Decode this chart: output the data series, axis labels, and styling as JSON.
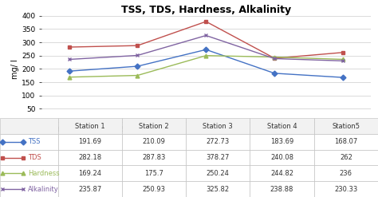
{
  "title": "TSS, TDS, Hardness, Alkalinity",
  "ylabel": "mg/ l",
  "stations": [
    "Station 1",
    "Station 2",
    "Station 3",
    "Station 4",
    "Station5"
  ],
  "series": [
    {
      "label": "TSS",
      "values": [
        191.69,
        210.09,
        272.73,
        183.69,
        168.07
      ],
      "color": "#4472C4",
      "marker": "D",
      "linestyle": "-"
    },
    {
      "label": "TDS",
      "values": [
        282.18,
        287.83,
        378.27,
        240.08,
        262
      ],
      "color": "#C0504D",
      "marker": "s",
      "linestyle": "-"
    },
    {
      "label": "Hardness",
      "values": [
        169.24,
        175.7,
        250.24,
        244.82,
        236
      ],
      "color": "#9BBB59",
      "marker": "^",
      "linestyle": "-"
    },
    {
      "label": "Alkalinity",
      "values": [
        235.87,
        250.93,
        325.82,
        238.88,
        230.33
      ],
      "color": "#8064A2",
      "marker": "x",
      "linestyle": "-"
    }
  ],
  "ylim": [
    0,
    400
  ],
  "yticks": [
    0,
    50,
    100,
    150,
    200,
    250,
    300,
    350,
    400
  ],
  "table_rows": [
    [
      "191.69",
      "210.09",
      "272.73",
      "183.69",
      "168.07"
    ],
    [
      "282.18",
      "287.83",
      "378.27",
      "240.08",
      "262"
    ],
    [
      "169.24",
      "175.7",
      "250.24",
      "244.82",
      "236"
    ],
    [
      "235.87",
      "250.93",
      "325.82",
      "238.88",
      "230.33"
    ]
  ],
  "row_labels": [
    "TSS",
    "TDS",
    "Hardness",
    "Alkalinity"
  ],
  "row_colors": [
    "#4472C4",
    "#C0504D",
    "#9BBB59",
    "#8064A2"
  ],
  "background_color": "#FFFFFF",
  "grid_color": "#CCCCCC",
  "title_fontsize": 9,
  "axis_fontsize": 6.5,
  "table_fontsize": 6
}
